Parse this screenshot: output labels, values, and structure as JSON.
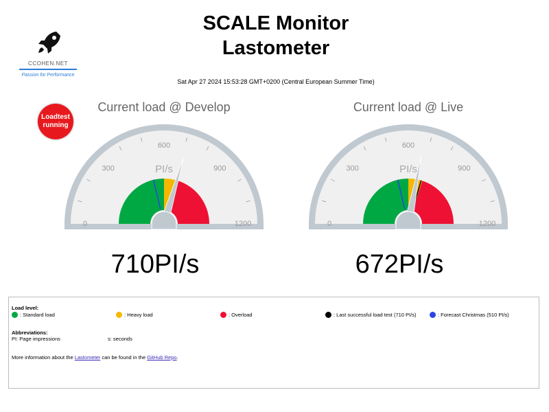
{
  "logo": {
    "text": "CCOHEN.NET",
    "tagline": "Passion for Performance",
    "icon": "rocket-icon"
  },
  "title": {
    "line1": "SCALE Monitor",
    "line2": "Lastometer"
  },
  "timestamp": "Sat Apr 27 2024 15:53:28 GMT+0200 (Central European Summer Time)",
  "status_badge": {
    "line1": "Loadtest",
    "line2": "running",
    "color": "#e8191e"
  },
  "gauges": [
    {
      "title": "Current load @ Develop",
      "unit": "PI/s",
      "value": 710,
      "value_text": "710PI/s",
      "ticks": [
        "0",
        "300",
        "600",
        "900",
        "1200"
      ],
      "min": 0,
      "max": 1200,
      "markers": {
        "last_successful": 710,
        "forecast": 510
      }
    },
    {
      "title": "Current load @ Live",
      "unit": "PI/s",
      "value": 672,
      "value_text": "672PI/s",
      "ticks": [
        "0",
        "300",
        "600",
        "900",
        "1200"
      ],
      "min": 0,
      "max": 1200,
      "markers": {
        "last_successful": 710,
        "forecast": 510
      }
    }
  ],
  "zones": {
    "standard": [
      0,
      600
    ],
    "heavy": [
      600,
      720
    ],
    "overload": [
      720,
      1200
    ]
  },
  "colors": {
    "standard": "#00a843",
    "heavy": "#f5b800",
    "overload": "#ee1133",
    "last": "#000000",
    "forecast": "#2b45e0",
    "frame": "#c0c8d0",
    "needle": "#c0c8d0"
  },
  "legend": {
    "load_level_heading": "Load level:",
    "items": [
      {
        "label": ": Standard load",
        "color": "#00a843"
      },
      {
        "label": ": Heavy load",
        "color": "#f5b800"
      },
      {
        "label": ": Overload",
        "color": "#ee1133"
      },
      {
        "label": ": Last successful load test (710 PI/s)",
        "color": "#000000"
      },
      {
        "label": ": Forecast Christmas (510 PI/s)",
        "color": "#2b45e0"
      }
    ],
    "abbrev_heading": "Abbreviations:",
    "abbrev": [
      "PI: Page impressions",
      "s: seconds"
    ],
    "info_prefix": "More information about the ",
    "info_link1": "Lastometer",
    "info_mid": " can be found in the ",
    "info_link2": "GitHub Repo",
    "info_suffix": "."
  }
}
